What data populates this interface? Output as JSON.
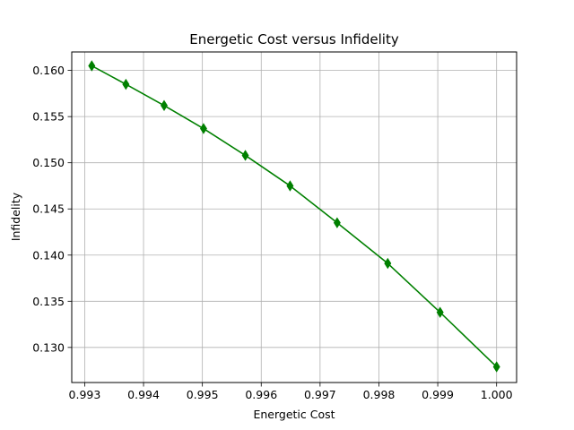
{
  "chart_data": {
    "type": "line",
    "title": "Energetic Cost versus Infidelity",
    "xlabel": "Energetic Cost",
    "ylabel": "Infidelity",
    "xlim": [
      0.99278,
      1.00034
    ],
    "ylim": [
      0.1262,
      0.162
    ],
    "x_ticks": [
      0.993,
      0.994,
      0.995,
      0.996,
      0.997,
      0.998,
      0.999,
      1.0
    ],
    "x_tick_labels": [
      "0.993",
      "0.994",
      "0.995",
      "0.996",
      "0.997",
      "0.998",
      "0.999",
      "1.000"
    ],
    "y_ticks": [
      0.13,
      0.135,
      0.14,
      0.145,
      0.15,
      0.155,
      0.16
    ],
    "y_tick_labels": [
      "0.130",
      "0.135",
      "0.140",
      "0.145",
      "0.150",
      "0.155",
      "0.160"
    ],
    "grid": true,
    "legend": false,
    "series": [
      {
        "color": "#008000",
        "marker": "thin-diamond",
        "x": [
          0.99312,
          0.9937,
          0.99435,
          0.99502,
          0.99573,
          0.99649,
          0.99729,
          0.99815,
          0.99904,
          1.0
        ],
        "y": [
          0.1605,
          0.1585,
          0.1562,
          0.1537,
          0.1508,
          0.1475,
          0.1435,
          0.1391,
          0.1338,
          0.1279
        ]
      }
    ]
  }
}
